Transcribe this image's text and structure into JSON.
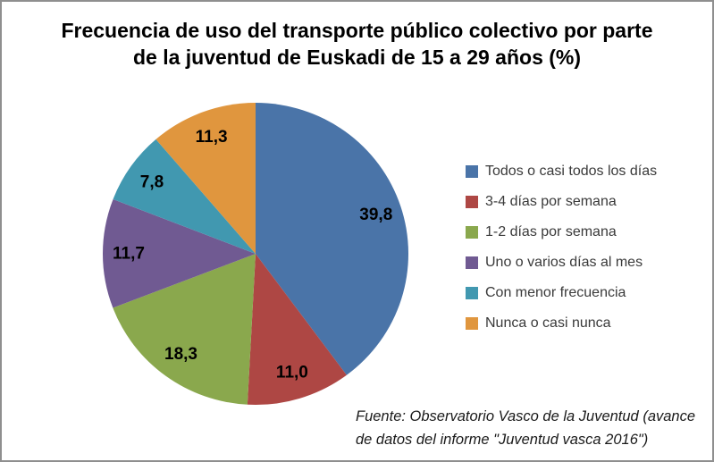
{
  "chart_data": {
    "type": "pie",
    "title": "Frecuencia de uso del transporte público colectivo por parte de la juventud de Euskadi de 15 a 29 años (%)",
    "unit": "%",
    "start_angle_deg": 0,
    "direction": "clockwise",
    "legend_position": "right",
    "labels_position": "inside",
    "decimal_separator": ",",
    "slices": [
      {
        "label": "Todos o casi todos los días",
        "value": 39.8,
        "value_display": "39,8",
        "color": "#4A74A8"
      },
      {
        "label": "3-4 días por semana",
        "value": 11.0,
        "value_display": "11,0",
        "color": "#AE4744"
      },
      {
        "label": "1-2 días por semana",
        "value": 18.3,
        "value_display": "18,3",
        "color": "#8AA84D"
      },
      {
        "label": "Uno o varios días al mes",
        "value": 11.7,
        "value_display": "11,7",
        "color": "#705A92"
      },
      {
        "label": "Con menor frecuencia",
        "value": 7.8,
        "value_display": "7,8",
        "color": "#4198B0"
      },
      {
        "label": "Nunca o casi nunca",
        "value": 11.3,
        "value_display": "11,3",
        "color": "#E0963E"
      }
    ],
    "source_note": "Fuente: Observatorio Vasco de la Juventud (avance de datos del informe \"Juventud vasca 2016\")"
  }
}
